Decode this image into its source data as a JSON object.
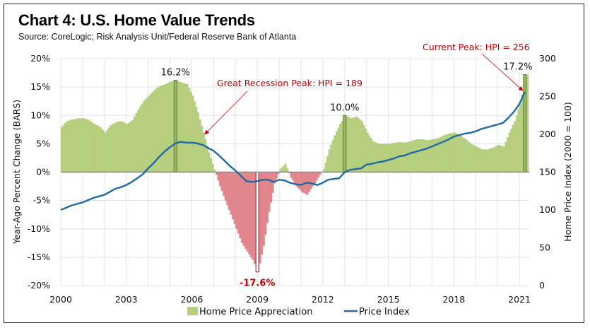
{
  "header": {
    "title": "Chart 4: U.S. Home Value Trends",
    "subtitle": "Source: CoreLogic; Risk Analysis Unit/Federal Reserve Bank of Atlanta"
  },
  "chart_data": {
    "type": "bar+line",
    "title": "Chart 4: U.S. Home Value Trends",
    "subtitle": "Source: CoreLogic; Risk Analysis Unit/Federal Reserve Bank of Atlanta",
    "xlabel": "",
    "ylabel": "Year-Ago Percent Change (BARS)",
    "y2label": "Home Price Index (2000 = 100)",
    "ylim": [
      -20,
      20
    ],
    "y2lim": [
      0,
      300
    ],
    "xlim": [
      2000,
      2021.45
    ],
    "grid": true,
    "legend_position": "bottom",
    "x_ticks": [
      "2000",
      "2003",
      "2006",
      "2009",
      "2012",
      "2015",
      "2018",
      "2021"
    ],
    "x_tick_values": [
      2000,
      2003,
      2006,
      2009,
      2012,
      2015,
      2018,
      2021
    ],
    "y_ticks": [
      "20%",
      "15%",
      "10%",
      "5%",
      "0%",
      "-5%",
      "-10%",
      "-15%",
      "-20%"
    ],
    "y_tick_values": [
      20,
      15,
      10,
      5,
      0,
      -5,
      -10,
      -15,
      -20
    ],
    "y2_ticks": [
      "300",
      "250",
      "200",
      "150",
      "100",
      "50",
      "0"
    ],
    "y2_tick_values": [
      300,
      250,
      200,
      150,
      100,
      50,
      0
    ],
    "colors": {
      "positive_bar": "#b5cf7f",
      "negative_bar": "#e0868c",
      "highlight_bar": "#5e7a2e",
      "trough_bar": "#7a1f24",
      "line": "#1f6aa5",
      "annotation": "#c00000",
      "grid": "#e3e3e3",
      "zero_line": "#8a8a8a"
    },
    "x_start": 2000.0,
    "x_step": 0.25,
    "series": [
      {
        "name": "Home Price Appreciation",
        "type": "bar",
        "axis": "left",
        "unit": "%",
        "values": [
          8.0,
          9.0,
          9.3,
          9.5,
          9.5,
          9.2,
          8.5,
          8.0,
          7.0,
          8.3,
          8.8,
          9.0,
          8.5,
          9.2,
          11.0,
          12.5,
          13.5,
          14.5,
          15.2,
          15.5,
          16.0,
          16.2,
          15.8,
          15.5,
          13.5,
          10.5,
          7.0,
          3.5,
          0.5,
          -2.5,
          -5.0,
          -7.5,
          -10.0,
          -12.5,
          -14.0,
          -15.5,
          -17.6,
          -13.0,
          -7.0,
          -2.0,
          0.5,
          1.5,
          -1.0,
          -2.5,
          -3.5,
          -4.0,
          -2.5,
          -1.0,
          0.5,
          4.0,
          6.5,
          8.5,
          10.0,
          9.5,
          9.8,
          9.0,
          7.0,
          5.5,
          5.0,
          5.0,
          5.0,
          5.2,
          5.3,
          5.2,
          5.5,
          5.8,
          5.8,
          5.6,
          5.8,
          6.0,
          6.5,
          6.8,
          7.0,
          6.5,
          5.8,
          5.0,
          4.5,
          4.0,
          4.0,
          4.3,
          4.8,
          4.5,
          7.0,
          9.0,
          12.0,
          17.2
        ]
      },
      {
        "name": "Price Index",
        "type": "line",
        "axis": "right",
        "unit": "index (2000 = 100)",
        "values": [
          100,
          103,
          106,
          108,
          110,
          113,
          116,
          118,
          120,
          124,
          128,
          130,
          133,
          137,
          142,
          147,
          155,
          162,
          170,
          177,
          183,
          188,
          190,
          189,
          189,
          188,
          186,
          182,
          178,
          172,
          165,
          158,
          152,
          145,
          138,
          137,
          138,
          140,
          140,
          137,
          140,
          139,
          136,
          134,
          133,
          136,
          135,
          133,
          136,
          140,
          141,
          142,
          150,
          153,
          154,
          155,
          160,
          161,
          163,
          164,
          166,
          168,
          171,
          172,
          175,
          177,
          179,
          181,
          184,
          187,
          190,
          193,
          197,
          199,
          201,
          202,
          204,
          207,
          209,
          211,
          213,
          215,
          222,
          230,
          240,
          256
        ]
      }
    ],
    "highlighted_bars": [
      {
        "label": "16.2%",
        "x": 2005.25,
        "value": 16.2,
        "kind": "peak"
      },
      {
        "label": "-17.6%",
        "x": 2009.0,
        "value": -17.6,
        "kind": "trough"
      },
      {
        "label": "10.0%",
        "x": 2013.0,
        "value": 10.0,
        "kind": "peak"
      },
      {
        "label": "17.2%",
        "x": 2021.25,
        "value": 17.2,
        "kind": "peak"
      }
    ],
    "annotations": [
      {
        "text": "Great Recession Peak: HPI = 189",
        "points_to_x": 2006.6,
        "points_to_hpi": 189
      },
      {
        "text": "Current Peak: HPI = 256",
        "points_to_x": 2021.25,
        "points_to_hpi": 256
      }
    ],
    "legend": [
      {
        "label": "Home Price Appreciation",
        "symbol": "square",
        "color": "#b5cf7f"
      },
      {
        "label": "Price Index",
        "symbol": "line",
        "color": "#1f6aa5"
      }
    ]
  }
}
